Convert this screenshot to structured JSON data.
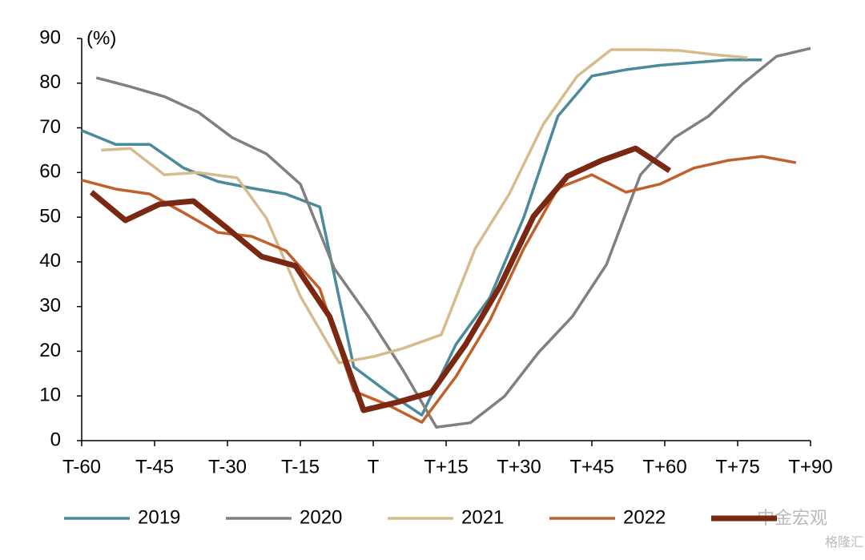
{
  "chart_data": {
    "type": "line",
    "y_label": "(%)",
    "xlim": [
      -60,
      90
    ],
    "ylim": [
      0,
      90
    ],
    "xticks": [
      {
        "value": -60,
        "label": "T-60"
      },
      {
        "value": -45,
        "label": "T-45"
      },
      {
        "value": -30,
        "label": "T-30"
      },
      {
        "value": -15,
        "label": "T-15"
      },
      {
        "value": 0,
        "label": "T"
      },
      {
        "value": 15,
        "label": "T+15"
      },
      {
        "value": 30,
        "label": "T+30"
      },
      {
        "value": 45,
        "label": "T+45"
      },
      {
        "value": 60,
        "label": "T+60"
      },
      {
        "value": 75,
        "label": "T+75"
      },
      {
        "value": 90,
        "label": "T+90"
      }
    ],
    "yticks": [
      0,
      10,
      20,
      30,
      40,
      50,
      60,
      70,
      80,
      90
    ],
    "legend": "bottom",
    "series": [
      {
        "name": "2019",
        "color": "#4a8a9a",
        "width": 3.5,
        "x": [
          -60,
          -53,
          -46,
          -39,
          -32,
          -25,
          -18,
          -11,
          -4,
          3,
          10,
          17,
          24,
          31,
          38,
          45,
          52,
          59,
          66,
          73,
          80
        ],
        "values": [
          69.4,
          66.3,
          66.3,
          61,
          58,
          56.5,
          55.2,
          52.3,
          16.5,
          10.8,
          5.7,
          21.5,
          32,
          50,
          72.6,
          81.6,
          83,
          84,
          84.6,
          85.2,
          85.2
        ]
      },
      {
        "name": "2020",
        "color": "#808080",
        "width": 3.5,
        "x": [
          -57,
          -50,
          -43,
          -36,
          -29,
          -22,
          -15,
          -8,
          -1,
          6,
          13,
          20,
          27,
          34,
          41,
          48,
          55,
          62,
          69,
          76,
          83,
          90
        ],
        "values": [
          81.2,
          79.2,
          77,
          73.5,
          67.8,
          64.2,
          57.4,
          38.5,
          27.8,
          16,
          3,
          4,
          9.9,
          19.7,
          27.8,
          39.4,
          59.5,
          67.8,
          72.6,
          79.8,
          86,
          87.8
        ]
      },
      {
        "name": "2021",
        "color": "#d4bc8e",
        "width": 3.5,
        "x": [
          -56,
          -50,
          -43,
          -36,
          -28,
          -22,
          -15,
          -7,
          0,
          6,
          14,
          21,
          28,
          35,
          42,
          49,
          56,
          63,
          70,
          77
        ],
        "values": [
          65,
          65.4,
          59.5,
          60,
          58.8,
          49.8,
          32.3,
          17.4,
          18.8,
          20.6,
          23.7,
          43,
          55.2,
          70.8,
          81.6,
          87.5,
          87.5,
          87.3,
          86.4,
          85.7
        ]
      },
      {
        "name": "2022",
        "color": "#c0602c",
        "width": 3.5,
        "x": [
          -60,
          -53,
          -46,
          -39,
          -32,
          -25,
          -18,
          -11,
          -4,
          3,
          10,
          17,
          24,
          31,
          38,
          45,
          52,
          59,
          66,
          73,
          80,
          87
        ],
        "values": [
          58.3,
          56.3,
          55.2,
          51,
          46.6,
          45.7,
          42.5,
          34,
          11.1,
          8,
          4.1,
          14.3,
          26.9,
          43,
          56.5,
          59.5,
          55.6,
          57.4,
          61,
          62.7,
          63.6,
          62.2
        ]
      },
      {
        "name": null,
        "color": "#7b2812",
        "width": 7,
        "x": [
          -58,
          -51,
          -44,
          -37,
          -30,
          -23,
          -16,
          -9,
          -2,
          5,
          12,
          19,
          26,
          33,
          40,
          47,
          54,
          61
        ],
        "values": [
          55.6,
          49.3,
          52.9,
          53.6,
          47.5,
          41.2,
          39.1,
          27.8,
          6.8,
          8.6,
          10.8,
          21.5,
          34.4,
          50.2,
          59.2,
          62.7,
          65.4,
          60.4
        ]
      }
    ]
  },
  "watermarks": [
    "中金宏观",
    "格隆汇"
  ]
}
